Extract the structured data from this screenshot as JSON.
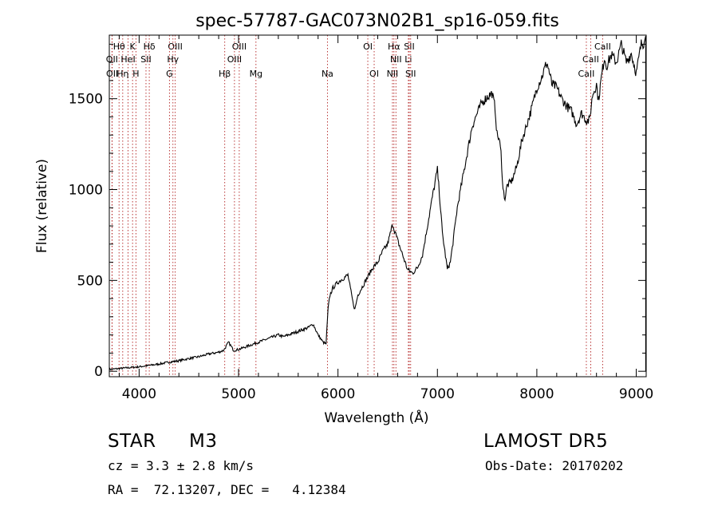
{
  "chart_data": {
    "type": "line",
    "title": "spec-57787-GAC073N02B1_sp16-059.fits",
    "xlabel": "Wavelength (Å)",
    "ylabel": "Flux (relative)",
    "xlim": [
      3700,
      9100
    ],
    "ylim": [
      -30,
      1850
    ],
    "x_ticks": [
      4000,
      5000,
      6000,
      7000,
      8000,
      9000
    ],
    "y_ticks": [
      0,
      500,
      1000,
      1500
    ],
    "grid": false,
    "line_color": "#000000",
    "marker_color": "#b22222",
    "series": [
      {
        "x": [
          3700,
          3800,
          3900,
          4000,
          4100,
          4200,
          4300,
          4400,
          4500,
          4600,
          4700,
          4800,
          4850,
          4900,
          4950,
          5000,
          5050,
          5100,
          5200,
          5300,
          5400,
          5450,
          5500,
          5600,
          5700,
          5750,
          5800,
          5850,
          5880,
          5900,
          5920,
          5950,
          6000,
          6050,
          6100,
          6150,
          6170,
          6200,
          6250,
          6300,
          6350,
          6400,
          6450,
          6500,
          6550,
          6600,
          6650,
          6700,
          6750,
          6800,
          6850,
          6900,
          6950,
          7000,
          7020,
          7050,
          7100,
          7130,
          7150,
          7200,
          7250,
          7300,
          7350,
          7400,
          7450,
          7500,
          7550,
          7580,
          7600,
          7620,
          7640,
          7660,
          7680,
          7700,
          7750,
          7800,
          7850,
          7900,
          7950,
          8000,
          8050,
          8100,
          8120,
          8150,
          8180,
          8200,
          8250,
          8300,
          8350,
          8400,
          8450,
          8500,
          8530,
          8560,
          8600,
          8620,
          8650,
          8680,
          8700,
          8750,
          8800,
          8850,
          8900,
          8950,
          9000,
          9050,
          9080
        ],
        "y": [
          10,
          15,
          20,
          25,
          32,
          40,
          50,
          58,
          70,
          80,
          95,
          105,
          115,
          160,
          115,
          120,
          130,
          140,
          160,
          180,
          200,
          190,
          200,
          220,
          240,
          260,
          200,
          160,
          150,
          340,
          420,
          460,
          490,
          510,
          530,
          380,
          340,
          420,
          470,
          520,
          570,
          600,
          660,
          700,
          810,
          720,
          640,
          560,
          540,
          570,
          640,
          800,
          960,
          1110,
          980,
          760,
          560,
          600,
          680,
          900,
          1050,
          1200,
          1350,
          1420,
          1480,
          1510,
          1530,
          1450,
          1300,
          1280,
          1200,
          1000,
          950,
          1020,
          1050,
          1130,
          1270,
          1360,
          1450,
          1560,
          1620,
          1700,
          1660,
          1580,
          1570,
          1560,
          1500,
          1460,
          1430,
          1360,
          1420,
          1380,
          1380,
          1520,
          1580,
          1490,
          1620,
          1730,
          1680,
          1740,
          1700,
          1800,
          1700,
          1750,
          1640,
          1800,
          1810
        ]
      }
    ],
    "line_markers": [
      {
        "label": "Hθ",
        "row": 0,
        "x": 3798
      },
      {
        "label": "K",
        "row": 0,
        "x": 3934
      },
      {
        "label": "Hδ",
        "row": 0,
        "x": 4102
      },
      {
        "label": "OIII",
        "row": 0,
        "x": 4363
      },
      {
        "label": "OIII",
        "row": 0,
        "x": 5007
      },
      {
        "label": "OI",
        "row": 0,
        "x": 6300
      },
      {
        "label": "Hα",
        "row": 0,
        "x": 6563
      },
      {
        "label": "SII",
        "row": 0,
        "x": 6717
      },
      {
        "label": "CaII",
        "row": 0,
        "x": 8662
      },
      {
        "label": "OII",
        "row": 1,
        "x": 3727
      },
      {
        "label": "HeI",
        "row": 1,
        "x": 3889
      },
      {
        "label": "SII",
        "row": 1,
        "x": 4069
      },
      {
        "label": "Hγ",
        "row": 1,
        "x": 4340
      },
      {
        "label": "OIII",
        "row": 1,
        "x": 4959
      },
      {
        "label": "NII",
        "row": 1,
        "x": 6583
      },
      {
        "label": "Li",
        "row": 1,
        "x": 6708
      },
      {
        "label": "CaII",
        "row": 1,
        "x": 8542
      },
      {
        "label": "OII",
        "row": 2,
        "x": 3729
      },
      {
        "label": "Hη",
        "row": 2,
        "x": 3835
      },
      {
        "label": "H",
        "row": 2,
        "x": 3968
      },
      {
        "label": "G",
        "row": 2,
        "x": 4305
      },
      {
        "label": "Hβ",
        "row": 2,
        "x": 4861
      },
      {
        "label": "Mg",
        "row": 2,
        "x": 5175
      },
      {
        "label": "Na",
        "row": 2,
        "x": 5894
      },
      {
        "label": "OI",
        "row": 2,
        "x": 6364
      },
      {
        "label": "NII",
        "row": 2,
        "x": 6548
      },
      {
        "label": "SII",
        "row": 2,
        "x": 6731
      },
      {
        "label": "CaII",
        "row": 2,
        "x": 8498
      }
    ]
  },
  "info": {
    "object_class": "STAR",
    "subclass": "M3",
    "survey": "LAMOST DR5",
    "redshift": "cz = 3.3 ± 2.8 km/s",
    "obs_date": "Obs-Date: 20170202",
    "coords": "RA =  72.13207, DEC =   4.12384"
  }
}
